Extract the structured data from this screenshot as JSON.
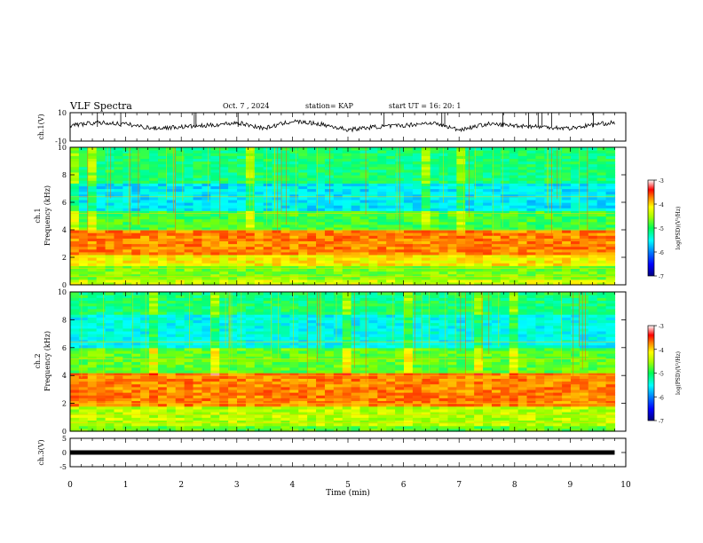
{
  "header": {
    "title": "VLF Spectra",
    "date": "Oct. 7 , 2024",
    "station": "station= KAP",
    "start": "start UT = 16: 20: 1"
  },
  "chart_data": [
    {
      "type": "line",
      "panel": "ch1-waveform",
      "ylabel": "ch.1(V)",
      "ylim": [
        -10,
        10
      ],
      "yticks": [
        "10",
        "-10"
      ],
      "x_range_min": [
        0,
        9.8
      ],
      "grid": false,
      "description_values": "noisy waveform fluctuating roughly between -4 and 6 V",
      "x": [
        0,
        0.5,
        1,
        1.5,
        2,
        2.5,
        3,
        3.5,
        4,
        4.5,
        5,
        5.5,
        6,
        6.5,
        7,
        7.5,
        8,
        8.5,
        9,
        9.5,
        9.8
      ],
      "y": [
        1,
        3,
        2,
        -1,
        0,
        1,
        3,
        -1,
        4,
        2,
        -2,
        0,
        1,
        3,
        -2,
        2,
        1,
        0,
        -1,
        2,
        3
      ]
    },
    {
      "type": "heatmap",
      "panel": "ch1-spectrogram",
      "ylabel": "ch.1 Frequency (kHz)",
      "ylim": [
        0,
        10
      ],
      "yticks": [
        "0",
        "2",
        "4",
        "6",
        "8",
        "10"
      ],
      "x_range_min": [
        0,
        9.8
      ],
      "colorbar": {
        "label": "log(PSD)(V²/Hz)",
        "ticks": [
          "-3",
          "-4",
          "-5",
          "-6",
          "-7"
        ],
        "range": [
          -7,
          -3
        ]
      },
      "bands": [
        {
          "freq_khz": [
            0,
            0.4
          ],
          "level": -4.5
        },
        {
          "freq_khz": [
            0.4,
            1.5
          ],
          "level": -4.8
        },
        {
          "freq_khz": [
            1.5,
            2.2
          ],
          "level": -4.3
        },
        {
          "freq_khz": [
            2.2,
            4.0
          ],
          "level": -3.9
        },
        {
          "freq_khz": [
            4.0,
            5.5
          ],
          "level": -5.0
        },
        {
          "freq_khz": [
            5.5,
            7.5
          ],
          "level": -5.7
        },
        {
          "freq_khz": [
            7.5,
            10
          ],
          "level": -5.2
        }
      ]
    },
    {
      "type": "heatmap",
      "panel": "ch2-spectrogram",
      "ylabel": "ch.2 Frequency (kHz)",
      "ylim": [
        0,
        10
      ],
      "yticks": [
        "0",
        "2",
        "4",
        "6",
        "8",
        "10"
      ],
      "x_range_min": [
        0,
        9.8
      ],
      "colorbar": {
        "label": "log(PSD)(V²/Hz)",
        "ticks": [
          "-3",
          "-4",
          "-5",
          "-6",
          "-7"
        ],
        "range": [
          -7,
          -3
        ]
      },
      "bands": [
        {
          "freq_khz": [
            0,
            0.5
          ],
          "level": -4.9
        },
        {
          "freq_khz": [
            0.5,
            1.8
          ],
          "level": -4.6
        },
        {
          "freq_khz": [
            1.8,
            4.2
          ],
          "level": -3.9
        },
        {
          "freq_khz": [
            4.2,
            6.0
          ],
          "level": -4.9
        },
        {
          "freq_khz": [
            6.0,
            8.5
          ],
          "level": -5.6
        },
        {
          "freq_khz": [
            8.5,
            10
          ],
          "level": -5.2
        }
      ]
    },
    {
      "type": "line",
      "panel": "ch3-waveform",
      "ylabel": "ch.3(V)",
      "ylim": [
        -5,
        5
      ],
      "yticks": [
        "5",
        "0",
        "-5"
      ],
      "x_range_min": [
        0,
        9.8
      ],
      "x": [
        0,
        9.8
      ],
      "y": [
        0,
        0
      ]
    }
  ],
  "xaxis": {
    "label": "Time (min)",
    "range": [
      0,
      10
    ],
    "ticks": [
      "0",
      "1",
      "2",
      "3",
      "4",
      "5",
      "6",
      "7",
      "8",
      "9",
      "10"
    ]
  },
  "colors": {
    "colormap": [
      "#00007f",
      "#0000ff",
      "#007fff",
      "#00ffff",
      "#00ff7f",
      "#7fff00",
      "#ffff00",
      "#ff7f00",
      "#ff0000",
      "#ffffff"
    ]
  }
}
